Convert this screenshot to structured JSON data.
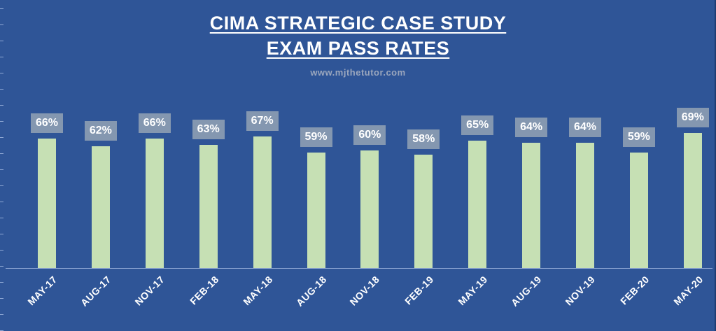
{
  "chart_data": {
    "type": "bar",
    "title_line_1": "CIMA STRATEGIC CASE STUDY",
    "title_line_2": "EXAM PASS RATES",
    "watermark": "www.mjthetutor.com",
    "categories": [
      "MAY-17",
      "AUG-17",
      "NOV-17",
      "FEB-18",
      "MAY-18",
      "AUG-18",
      "NOV-18",
      "FEB-19",
      "MAY-19",
      "AUG-19",
      "NOV-19",
      "FEB-20",
      "MAY-20"
    ],
    "values": [
      66,
      62,
      66,
      63,
      67,
      59,
      60,
      58,
      65,
      64,
      64,
      59,
      69
    ],
    "data_labels": [
      "66%",
      "62%",
      "66%",
      "63%",
      "67%",
      "59%",
      "60%",
      "58%",
      "65%",
      "64%",
      "64%",
      "59%",
      "69%"
    ],
    "value_unit": "%",
    "ylim": [
      0,
      100
    ],
    "xlabel": "",
    "ylabel": "",
    "grid": false,
    "colors": {
      "background": "#2f5597",
      "bar": "#c6e0b4",
      "label_box": "#8497b0",
      "text": "#ffffff"
    }
  }
}
